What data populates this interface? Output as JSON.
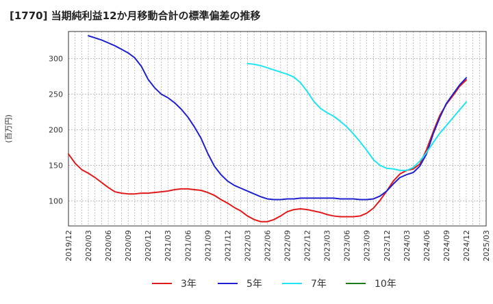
{
  "chart_data": {
    "type": "line",
    "title": "[1770]  当期純利益12か月移動合計の標準偏差の推移",
    "ylabel": "(百万円)",
    "xlabel": "",
    "ylim": [
      65,
      338
    ],
    "yticks": [
      100,
      150,
      200,
      250,
      300
    ],
    "xticks": [
      "2019/12",
      "2020/03",
      "2020/06",
      "2020/09",
      "2020/12",
      "2021/03",
      "2021/06",
      "2021/09",
      "2021/12",
      "2022/03",
      "2022/06",
      "2022/09",
      "2022/12",
      "2023/03",
      "2023/06",
      "2023/09",
      "2023/12",
      "2024/03",
      "2024/06",
      "2024/09",
      "2024/12",
      "2025/03"
    ],
    "grid": true,
    "legend_position": "bottom",
    "series": [
      {
        "name": "3年",
        "color": "#e0191b",
        "x": [
          "2019/12",
          "2020/01",
          "2020/02",
          "2020/03",
          "2020/04",
          "2020/05",
          "2020/06",
          "2020/07",
          "2020/08",
          "2020/09",
          "2020/10",
          "2020/11",
          "2020/12",
          "2021/01",
          "2021/02",
          "2021/03",
          "2021/04",
          "2021/05",
          "2021/06",
          "2021/07",
          "2021/08",
          "2021/09",
          "2021/10",
          "2021/11",
          "2021/12",
          "2022/01",
          "2022/02",
          "2022/03",
          "2022/04",
          "2022/05",
          "2022/06",
          "2022/07",
          "2022/08",
          "2022/09",
          "2022/10",
          "2022/11",
          "2022/12",
          "2023/01",
          "2023/02",
          "2023/03",
          "2023/04",
          "2023/05",
          "2023/06",
          "2023/07",
          "2023/08",
          "2023/09",
          "2023/10",
          "2023/11",
          "2023/12",
          "2024/01",
          "2024/02",
          "2024/03",
          "2024/04",
          "2024/05",
          "2024/06",
          "2024/07",
          "2024/08",
          "2024/09",
          "2024/10",
          "2024/11",
          "2024/12"
        ],
        "values": [
          166,
          153,
          144,
          139,
          133,
          126,
          119,
          113,
          111,
          110,
          110,
          111,
          111,
          112,
          113,
          114,
          116,
          117,
          117,
          116,
          115,
          112,
          108,
          102,
          97,
          91,
          86,
          79,
          74,
          71,
          71,
          74,
          79,
          85,
          88,
          89,
          88,
          86,
          84,
          81,
          79,
          78,
          78,
          78,
          79,
          83,
          90,
          101,
          114,
          128,
          138,
          143,
          145,
          152,
          172,
          197,
          220,
          236,
          248,
          261,
          270
        ]
      },
      {
        "name": "5年",
        "color": "#1f1fcf",
        "x": [
          "2020/03",
          "2020/04",
          "2020/05",
          "2020/06",
          "2020/07",
          "2020/08",
          "2020/09",
          "2020/10",
          "2020/11",
          "2020/12",
          "2021/01",
          "2021/02",
          "2021/03",
          "2021/04",
          "2021/05",
          "2021/06",
          "2021/07",
          "2021/08",
          "2021/09",
          "2021/10",
          "2021/11",
          "2021/12",
          "2022/01",
          "2022/02",
          "2022/03",
          "2022/04",
          "2022/05",
          "2022/06",
          "2022/07",
          "2022/08",
          "2022/09",
          "2022/10",
          "2022/11",
          "2022/12",
          "2023/01",
          "2023/02",
          "2023/03",
          "2023/04",
          "2023/05",
          "2023/06",
          "2023/07",
          "2023/08",
          "2023/09",
          "2023/10",
          "2023/11",
          "2023/12",
          "2024/01",
          "2024/02",
          "2024/03",
          "2024/04",
          "2024/05",
          "2024/06",
          "2024/07",
          "2024/08",
          "2024/09",
          "2024/10",
          "2024/11",
          "2024/12"
        ],
        "values": [
          332,
          329,
          326,
          322,
          318,
          313,
          308,
          301,
          289,
          271,
          259,
          250,
          245,
          238,
          229,
          218,
          204,
          188,
          167,
          149,
          137,
          128,
          122,
          118,
          114,
          110,
          106,
          103,
          102,
          102,
          103,
          103,
          104,
          104,
          104,
          104,
          104,
          104,
          103,
          103,
          103,
          102,
          102,
          103,
          107,
          114,
          124,
          133,
          137,
          140,
          149,
          166,
          194,
          217,
          237,
          250,
          263,
          273
        ]
      },
      {
        "name": "7年",
        "color": "#1ee5ef",
        "x": [
          "2022/03",
          "2022/04",
          "2022/05",
          "2022/06",
          "2022/07",
          "2022/08",
          "2022/09",
          "2022/10",
          "2022/11",
          "2022/12",
          "2023/01",
          "2023/02",
          "2023/03",
          "2023/04",
          "2023/05",
          "2023/06",
          "2023/07",
          "2023/08",
          "2023/09",
          "2023/10",
          "2023/11",
          "2023/12",
          "2024/01",
          "2024/02",
          "2024/03",
          "2024/04",
          "2024/05",
          "2024/06",
          "2024/07",
          "2024/08",
          "2024/09",
          "2024/10",
          "2024/11",
          "2024/12"
        ],
        "values": [
          293,
          292,
          290,
          287,
          284,
          281,
          278,
          274,
          266,
          254,
          240,
          230,
          224,
          219,
          212,
          204,
          194,
          183,
          171,
          158,
          150,
          146,
          145,
          143,
          143,
          147,
          156,
          168,
          182,
          195,
          206,
          217,
          228,
          239
        ]
      },
      {
        "name": "10年",
        "color": "#1a7d1a",
        "x": [],
        "values": []
      }
    ]
  }
}
